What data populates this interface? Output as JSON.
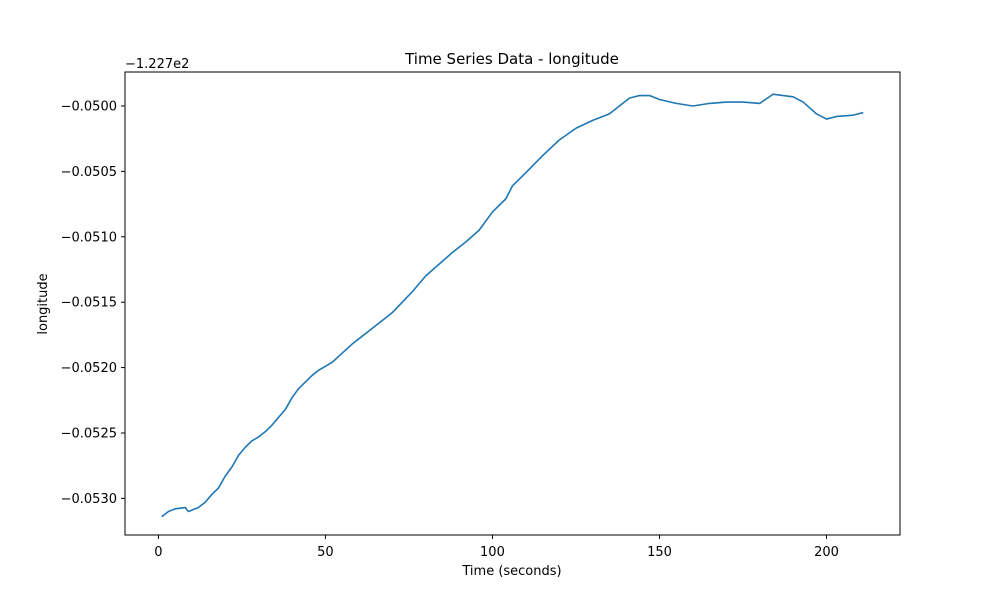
{
  "chart_data": {
    "type": "line",
    "title": "Time Series Data - longitude",
    "xlabel": "Time (seconds)",
    "ylabel": "longitude",
    "offset_label": "−1.227e2",
    "xlim": [
      -10,
      222
    ],
    "ylim": [
      -0.05328,
      -0.04974
    ],
    "x_ticks": [
      0,
      50,
      100,
      150,
      200
    ],
    "x_tick_labels": [
      "0",
      "50",
      "100",
      "150",
      "200"
    ],
    "y_ticks": [
      -0.05,
      -0.0505,
      -0.051,
      -0.0515,
      -0.052,
      -0.0525,
      -0.053
    ],
    "y_tick_labels": [
      "−0.0500",
      "−0.0505",
      "−0.0510",
      "−0.0515",
      "−0.0520",
      "−0.0525",
      "−0.0530"
    ],
    "grid": false,
    "color": "#1f77b4",
    "series": [
      {
        "x": [
          1,
          3,
          5,
          8,
          9,
          12,
          14,
          16,
          18,
          20,
          22,
          24,
          26,
          28,
          30,
          32,
          34,
          36,
          38,
          40,
          42,
          44,
          46,
          48,
          50,
          52,
          55,
          58,
          60,
          63,
          66,
          70,
          73,
          76,
          80,
          84,
          88,
          92,
          96,
          100,
          104,
          106,
          110,
          115,
          120,
          125,
          130,
          135,
          138,
          141,
          144,
          147,
          150,
          155,
          160,
          165,
          170,
          175,
          180,
          184,
          187,
          190,
          193,
          197,
          200,
          203,
          208,
          211
        ],
        "y": [
          -0.05314,
          -0.0531,
          -0.05308,
          -0.05307,
          -0.0531,
          -0.05307,
          -0.05303,
          -0.05297,
          -0.05292,
          -0.05283,
          -0.05276,
          -0.05267,
          -0.05261,
          -0.05256,
          -0.05253,
          -0.05249,
          -0.05244,
          -0.05238,
          -0.05232,
          -0.05223,
          -0.05216,
          -0.05211,
          -0.05206,
          -0.05202,
          -0.05199,
          -0.05196,
          -0.05189,
          -0.05182,
          -0.05178,
          -0.05172,
          -0.05166,
          -0.05158,
          -0.0515,
          -0.05142,
          -0.0513,
          -0.05121,
          -0.05112,
          -0.05104,
          -0.05095,
          -0.05081,
          -0.05071,
          -0.05061,
          -0.05051,
          -0.05038,
          -0.05026,
          -0.05017,
          -0.05011,
          -0.05006,
          -0.05,
          -0.04994,
          -0.04992,
          -0.04992,
          -0.04995,
          -0.04998,
          -0.05,
          -0.04998,
          -0.04997,
          -0.04997,
          -0.04998,
          -0.04991,
          -0.04992,
          -0.04993,
          -0.04997,
          -0.05006,
          -0.0501,
          -0.05008,
          -0.05007,
          -0.05005
        ]
      }
    ]
  }
}
